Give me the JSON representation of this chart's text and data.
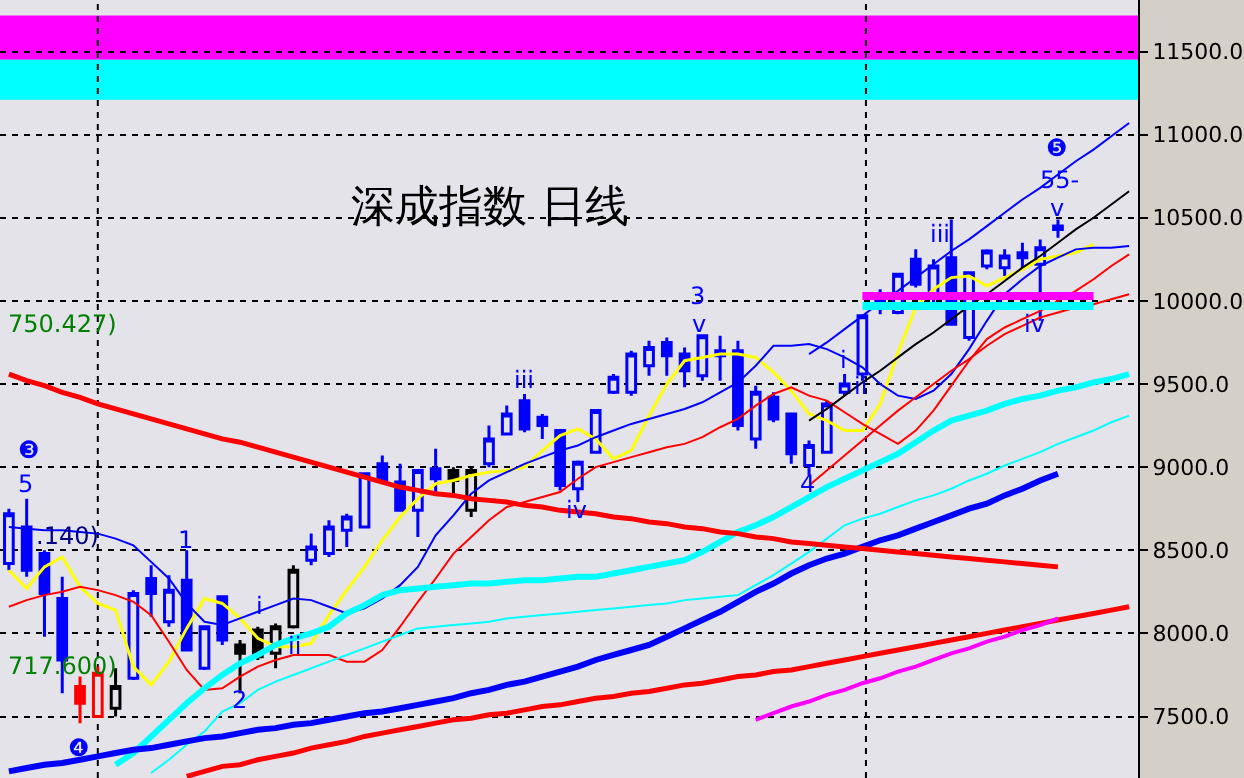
{
  "chart_data": {
    "type": "candlestick",
    "title": "深成指数 日线",
    "categories": [
      null,
      null,
      null,
      null,
      null,
      null,
      null,
      null,
      null,
      null,
      null,
      null,
      null,
      null,
      null,
      null,
      null,
      null,
      null,
      null,
      null,
      null,
      null,
      null,
      null,
      null,
      null,
      null,
      null,
      null,
      null,
      null,
      null,
      null,
      null,
      null,
      null,
      null,
      null,
      null,
      null,
      null,
      null,
      null,
      null,
      null,
      null,
      null,
      null,
      null,
      null,
      null,
      null,
      null,
      null,
      null,
      null,
      null,
      null,
      null,
      null,
      null,
      null,
      null
    ],
    "ohlc": [
      [
        8420,
        8750,
        8380,
        8720
      ],
      [
        8640,
        8810,
        8340,
        8380
      ],
      [
        8480,
        8500,
        7980,
        8240
      ],
      [
        8210,
        8340,
        7640,
        7840
      ],
      [
        7680,
        7740,
        7460,
        7580
      ],
      [
        7500,
        7800,
        7500,
        7760
      ],
      [
        7550,
        7790,
        7500,
        7680
      ],
      [
        7730,
        8260,
        7720,
        8240
      ],
      [
        8330,
        8410,
        8100,
        8240
      ],
      [
        8070,
        8350,
        8040,
        8260
      ],
      [
        8320,
        8500,
        7900,
        7900
      ],
      [
        7790,
        8040,
        7780,
        8040
      ],
      [
        8220,
        8230,
        7930,
        7960
      ],
      [
        7930,
        7960,
        7640,
        7880
      ],
      [
        8020,
        8040,
        7840,
        7860
      ],
      [
        7880,
        8060,
        7790,
        8040
      ],
      [
        8040,
        8410,
        8030,
        8380
      ],
      [
        8440,
        8600,
        8410,
        8520
      ],
      [
        8480,
        8680,
        8460,
        8640
      ],
      [
        8620,
        8720,
        8520,
        8700
      ],
      [
        8640,
        8960,
        8640,
        8960
      ],
      [
        9020,
        9070,
        8900,
        8920
      ],
      [
        8910,
        9020,
        8740,
        8740
      ],
      [
        8740,
        8980,
        8580,
        8980
      ],
      [
        8990,
        9110,
        8850,
        8930
      ],
      [
        8980,
        9000,
        8840,
        8920
      ],
      [
        8740,
        9000,
        8700,
        8980
      ],
      [
        9020,
        9250,
        9000,
        9170
      ],
      [
        9200,
        9370,
        9190,
        9320
      ],
      [
        9400,
        9440,
        9210,
        9230
      ],
      [
        9300,
        9320,
        9170,
        9250
      ],
      [
        9220,
        9230,
        8860,
        8890
      ],
      [
        8870,
        9040,
        8790,
        9030
      ],
      [
        9090,
        9340,
        9080,
        9340
      ],
      [
        9450,
        9560,
        9440,
        9540
      ],
      [
        9450,
        9700,
        9430,
        9680
      ],
      [
        9610,
        9760,
        9550,
        9720
      ],
      [
        9750,
        9780,
        9550,
        9670
      ],
      [
        9680,
        9720,
        9480,
        9580
      ],
      [
        9550,
        9800,
        9520,
        9790
      ],
      [
        9700,
        9790,
        9520,
        9670
      ],
      [
        9700,
        9760,
        9220,
        9250
      ],
      [
        9170,
        9490,
        9110,
        9450
      ],
      [
        9420,
        9450,
        9270,
        9290
      ],
      [
        9320,
        9320,
        9020,
        9080
      ],
      [
        9010,
        9160,
        8950,
        9130
      ],
      [
        9090,
        9400,
        9080,
        9380
      ],
      [
        9450,
        9560,
        9430,
        9500
      ],
      [
        9560,
        9910,
        9520,
        9910
      ],
      [
        10030,
        10070,
        9920,
        9970
      ],
      [
        9930,
        10170,
        9920,
        10160
      ],
      [
        10250,
        10310,
        10080,
        10100
      ],
      [
        10020,
        10250,
        9980,
        10210
      ],
      [
        10260,
        10490,
        9850,
        9860
      ],
      [
        9780,
        10170,
        9760,
        10170
      ],
      [
        10210,
        10310,
        10190,
        10300
      ],
      [
        10200,
        10310,
        10150,
        10270
      ],
      [
        10290,
        10350,
        10190,
        10260
      ],
      [
        10220,
        10370,
        9880,
        10320
      ],
      [
        10450,
        10490,
        10380,
        10430
      ],
      null,
      null,
      null,
      null
    ],
    "colors": [
      "#0000ff",
      "#0000ff",
      "#0000ff",
      "#0000ff",
      "#ff0000",
      "#ff0000",
      "#000000",
      "#0000ff",
      "#0000ff",
      "#0000ff",
      "#0000ff",
      "#0000ff",
      "#0000ff",
      "#000000",
      "#000000",
      "#000000",
      "#000000",
      "#0000ff",
      "#0000ff",
      "#0000ff",
      "#0000ff",
      "#0000ff",
      "#0000ff",
      "#0000ff",
      "#0000ff",
      "#000000",
      "#000000",
      "#0000ff",
      "#0000ff",
      "#0000ff",
      "#0000ff",
      "#0000ff",
      "#0000ff",
      "#0000ff",
      "#0000ff",
      "#0000ff",
      "#0000ff",
      "#0000ff",
      "#0000ff",
      "#0000ff",
      "#0000ff",
      "#0000ff",
      "#0000ff",
      "#0000ff",
      "#0000ff",
      "#0000ff",
      "#0000ff",
      "#0000ff",
      "#0000ff",
      "#0000ff",
      "#0000ff",
      "#0000ff",
      "#0000ff",
      "#0000ff",
      "#0000ff",
      "#0000ff",
      "#0000ff",
      "#0000ff",
      "#0000ff",
      "#0000ff",
      null,
      null,
      null,
      null
    ],
    "series": [
      {
        "type": "line",
        "color": "#ffff00",
        "values": [
          8380,
          8270,
          8400,
          8460,
          8280,
          8180,
          8140,
          7800,
          7690,
          7830,
          8030,
          8210,
          8180,
          8090,
          7970,
          7920,
          7920,
          7940,
          8110,
          8260,
          8400,
          8560,
          8700,
          8810,
          8900,
          8920,
          8950,
          8970,
          8980,
          9000,
          9100,
          9190,
          9230,
          9170,
          9050,
          9100,
          9310,
          9500,
          9640,
          9660,
          9680,
          9680,
          9660,
          9570,
          9460,
          9320,
          9280,
          9220,
          9220,
          9380,
          9690,
          9960,
          10070,
          10140,
          10150,
          10090,
          10140,
          10190,
          10250,
          10270,
          10290,
          10340,
          null,
          null
        ]
      },
      {
        "type": "line",
        "color": "#0000ff",
        "values": [
          8640,
          8630,
          8620,
          8620,
          8610,
          8600,
          8570,
          8530,
          8430,
          8330,
          8180,
          8070,
          8050,
          8090,
          8130,
          8170,
          8210,
          8200,
          8160,
          8120,
          8150,
          8210,
          8290,
          8400,
          8590,
          8710,
          8840,
          8920,
          8970,
          9020,
          9060,
          9100,
          9130,
          9180,
          9220,
          9260,
          9290,
          9320,
          9350,
          9390,
          9450,
          9510,
          9610,
          9730,
          9730,
          9740,
          9710,
          9660,
          9600,
          9500,
          9430,
          9410,
          9460,
          9560,
          9710,
          9880,
          10040,
          10130,
          10210,
          10260,
          10310,
          10320,
          10320,
          10330
        ]
      },
      {
        "type": "line",
        "color": "#ff0000",
        "values": [
          8160,
          8200,
          8230,
          8250,
          8280,
          8260,
          8230,
          8190,
          8110,
          7950,
          7780,
          7660,
          7670,
          7740,
          7800,
          7840,
          7870,
          7870,
          7870,
          7830,
          7830,
          7900,
          8040,
          8190,
          8330,
          8480,
          8580,
          8680,
          8760,
          8790,
          8820,
          8850,
          8930,
          9000,
          9030,
          9060,
          9090,
          9120,
          9140,
          9180,
          9240,
          9290,
          9370,
          9440,
          9480,
          9430,
          9400,
          9330,
          9260,
          9200,
          9140,
          9220,
          9340,
          9490,
          9640,
          9770,
          9840,
          9890,
          9940,
          10000,
          10060,
          10130,
          10210,
          10280
        ]
      },
      {
        "type": "line",
        "color": "#ff0000",
        "values": [
          null,
          null,
          null,
          null,
          null,
          null,
          null,
          null,
          null,
          null,
          null,
          null,
          null,
          null,
          null,
          null,
          null,
          null,
          null,
          null,
          null,
          null,
          null,
          null,
          null,
          null,
          null,
          null,
          null,
          null,
          null,
          null,
          null,
          null,
          null,
          null,
          null,
          null,
          null,
          null,
          null,
          null,
          null,
          null,
          null,
          8890,
          8980,
          9070,
          9160,
          9250,
          9340,
          9420,
          9500,
          9580,
          9650,
          9730,
          9800,
          9850,
          9900,
          9930,
          9960,
          9980,
          10010,
          10040
        ]
      },
      {
        "type": "line",
        "color": "#00ffff",
        "values": [
          null,
          null,
          null,
          null,
          null,
          null,
          7210,
          7280,
          7380,
          7480,
          7580,
          7670,
          7750,
          7820,
          7870,
          7930,
          7970,
          8000,
          8040,
          8120,
          8170,
          8230,
          8260,
          8270,
          8280,
          8290,
          8300,
          8300,
          8310,
          8320,
          8320,
          8330,
          8340,
          8340,
          8360,
          8380,
          8400,
          8420,
          8440,
          8490,
          8550,
          8610,
          8650,
          8700,
          8760,
          8820,
          8880,
          8930,
          8980,
          9030,
          9080,
          9150,
          9220,
          9280,
          9310,
          9340,
          9380,
          9410,
          9430,
          9460,
          9480,
          9510,
          9530,
          9560
        ]
      },
      {
        "type": "line",
        "color": "#00ffff",
        "values": [
          null,
          null,
          null,
          null,
          null,
          null,
          null,
          null,
          7160,
          7240,
          7330,
          7410,
          7530,
          7580,
          7660,
          7710,
          7750,
          7790,
          7830,
          7870,
          7910,
          7950,
          7990,
          8030,
          8040,
          8050,
          8060,
          8070,
          8090,
          8100,
          8110,
          8120,
          8130,
          8140,
          8150,
          8160,
          8170,
          8180,
          8200,
          8210,
          8220,
          8230,
          8290,
          8350,
          8420,
          8490,
          8570,
          8650,
          8690,
          8720,
          8760,
          8800,
          8830,
          8870,
          8920,
          8960,
          9010,
          9050,
          9090,
          9140,
          9180,
          9220,
          9270,
          9310
        ]
      },
      {
        "type": "line",
        "color": "#0000ff",
        "values": [
          7170,
          7190,
          7210,
          7220,
          7240,
          7260,
          7280,
          7300,
          7310,
          7330,
          7350,
          7370,
          7380,
          7400,
          7420,
          7430,
          7450,
          7460,
          7480,
          7500,
          7520,
          7530,
          7550,
          7570,
          7590,
          7610,
          7640,
          7660,
          7690,
          7710,
          7740,
          7770,
          7800,
          7840,
          7870,
          7900,
          7930,
          7980,
          8030,
          8080,
          8130,
          8190,
          8250,
          8300,
          8360,
          8410,
          8450,
          8480,
          8520,
          8560,
          8590,
          8630,
          8670,
          8710,
          8750,
          8780,
          8830,
          8870,
          8920,
          8960,
          null,
          null,
          null,
          null
        ]
      },
      {
        "type": "line",
        "color": "#ff0000",
        "values": [
          null,
          null,
          null,
          null,
          null,
          null,
          null,
          null,
          null,
          null,
          7140,
          7170,
          7200,
          7210,
          7240,
          7260,
          7280,
          7310,
          7330,
          7350,
          7380,
          7400,
          7420,
          7440,
          7460,
          7480,
          7490,
          7510,
          7520,
          7540,
          7560,
          7570,
          7590,
          7610,
          7620,
          7640,
          7650,
          7670,
          7690,
          7700,
          7720,
          7740,
          7750,
          7770,
          7780,
          7800,
          7820,
          7840,
          7860,
          7880,
          7900,
          7920,
          7940,
          7960,
          7980,
          8000,
          8020,
          8040,
          8060,
          8080,
          8100,
          8120,
          8140,
          8160
        ]
      },
      {
        "type": "line",
        "color": "#ff0000",
        "values": [
          9560,
          9520,
          9490,
          9450,
          9420,
          9380,
          9350,
          9320,
          9290,
          9260,
          9230,
          9200,
          9170,
          9150,
          9120,
          9090,
          9060,
          9030,
          9000,
          8970,
          8940,
          8910,
          8880,
          8860,
          8840,
          8830,
          8810,
          8800,
          8790,
          8770,
          8760,
          8740,
          8730,
          8720,
          8700,
          8690,
          8670,
          8660,
          8640,
          8630,
          8610,
          8600,
          8580,
          8570,
          8550,
          8540,
          8530,
          8520,
          8510,
          8500,
          8490,
          8480,
          8470,
          8460,
          8450,
          8440,
          8430,
          8420,
          8410,
          8400,
          null,
          null,
          null,
          null
        ]
      },
      {
        "type": "line",
        "color": "#ff00ff",
        "values": [
          null,
          null,
          null,
          null,
          null,
          null,
          null,
          null,
          null,
          null,
          null,
          null,
          null,
          null,
          null,
          null,
          null,
          null,
          null,
          null,
          null,
          null,
          null,
          null,
          null,
          null,
          null,
          null,
          null,
          null,
          null,
          null,
          null,
          null,
          null,
          null,
          null,
          null,
          null,
          null,
          null,
          null,
          7480,
          7520,
          7560,
          7590,
          7630,
          7660,
          7700,
          7730,
          7770,
          7800,
          7840,
          7880,
          7910,
          7950,
          7980,
          8020,
          8050,
          8090,
          null,
          null,
          null,
          null
        ]
      },
      {
        "type": "line",
        "color": "#000000",
        "values": [
          null,
          null,
          null,
          null,
          null,
          null,
          null,
          null,
          null,
          null,
          null,
          null,
          null,
          null,
          null,
          null,
          null,
          null,
          null,
          null,
          null,
          null,
          null,
          null,
          null,
          null,
          null,
          null,
          null,
          null,
          null,
          null,
          null,
          null,
          null,
          null,
          null,
          null,
          null,
          null,
          null,
          null,
          null,
          null,
          null,
          9280,
          9350,
          9430,
          9510,
          9580,
          9660,
          9740,
          9810,
          9890,
          9970,
          10040,
          10120,
          10200,
          10270,
          10350,
          10430,
          10500,
          10580,
          10660
        ]
      },
      {
        "type": "line",
        "color": "#0000ff",
        "values": [
          null,
          null,
          null,
          null,
          null,
          null,
          null,
          null,
          null,
          null,
          null,
          null,
          null,
          null,
          null,
          null,
          null,
          null,
          null,
          null,
          null,
          null,
          null,
          null,
          null,
          null,
          null,
          null,
          null,
          null,
          null,
          null,
          null,
          null,
          null,
          null,
          null,
          null,
          null,
          null,
          null,
          null,
          null,
          null,
          null,
          9680,
          9750,
          9830,
          9910,
          9990,
          10060,
          10140,
          10220,
          10300,
          10370,
          10450,
          10530,
          10610,
          10680,
          10760,
          10840,
          10910,
          10990,
          11070
        ]
      },
      {
        "type": "line",
        "color": "#ff00ff",
        "values": [
          null,
          null,
          null,
          null,
          null,
          null,
          null,
          null,
          null,
          null,
          null,
          null,
          null,
          null,
          null,
          null,
          null,
          null,
          null,
          null,
          null,
          null,
          null,
          null,
          null,
          null,
          null,
          null,
          null,
          null,
          null,
          null,
          null,
          null,
          null,
          null,
          null,
          null,
          null,
          null,
          null,
          null,
          null,
          null,
          null,
          null,
          null,
          null,
          10030,
          10030,
          10030,
          10030,
          10030,
          10030,
          10030,
          10030,
          10030,
          10030,
          10030,
          10030,
          10030,
          10030,
          null,
          null
        ]
      },
      {
        "type": "line",
        "color": "#00ffff",
        "values": [
          null,
          null,
          null,
          null,
          null,
          null,
          null,
          null,
          null,
          null,
          null,
          null,
          null,
          null,
          null,
          null,
          null,
          null,
          null,
          null,
          null,
          null,
          null,
          null,
          null,
          null,
          null,
          null,
          null,
          null,
          null,
          null,
          null,
          null,
          null,
          null,
          null,
          null,
          null,
          null,
          null,
          null,
          null,
          null,
          null,
          null,
          null,
          null,
          9970,
          9970,
          9970,
          9970,
          9970,
          9970,
          9970,
          9970,
          9970,
          9970,
          9970,
          9970,
          9970,
          9970,
          null,
          null
        ]
      }
    ],
    "ylim": [
      7130,
      11810
    ],
    "yticks": [
      {
        "value": 7500,
        "label": "7500.0"
      },
      {
        "value": 8000,
        "label": "8000.0"
      },
      {
        "value": 8500,
        "label": "8500.0"
      },
      {
        "value": 9000,
        "label": "9000.0"
      },
      {
        "value": 9500,
        "label": "9500.0"
      },
      {
        "value": 10000,
        "label": "10000.0"
      },
      {
        "value": 10500,
        "label": "10500.0"
      },
      {
        "value": 11000,
        "label": "11000.0"
      },
      {
        "value": 11500,
        "label": "11500.0"
      }
    ],
    "tick_labels": "y",
    "grid": "y",
    "bands": [
      {
        "axis": "y",
        "from": 11450,
        "to": 11717,
        "color": "#ff00ff"
      },
      {
        "axis": "y",
        "from": 11210,
        "to": 11450,
        "color": "#00ffff"
      }
    ],
    "annotations": [
      "750.427)",
      "717.600)",
      ".140)",
      "❸",
      "5",
      "❹",
      "1",
      "2",
      "i",
      "ii",
      "iii",
      "iv",
      "3",
      "v",
      "4",
      "i",
      "ii",
      "iii",
      "iv",
      "v",
      "55-",
      "❺"
    ]
  }
}
